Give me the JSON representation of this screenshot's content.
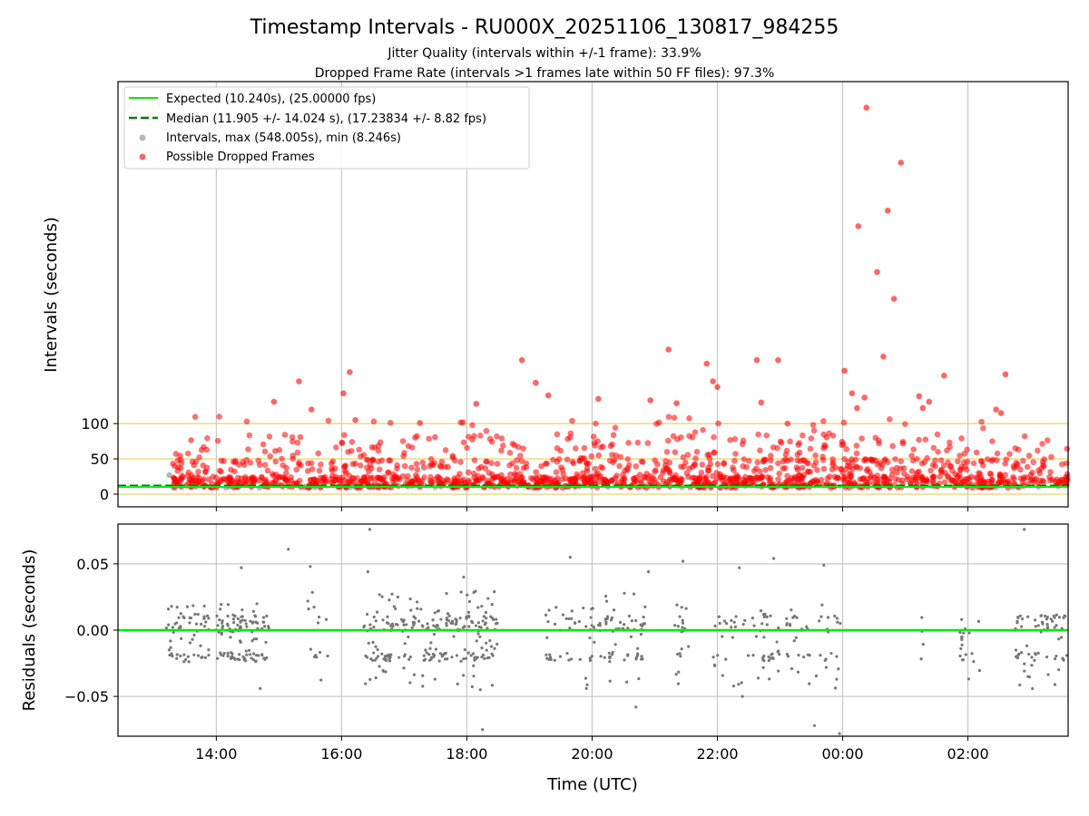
{
  "chart_data": [
    {
      "type": "scatter",
      "panel": "intervals",
      "title": "Timestamp Intervals - RU000X_20251106_130817_984255",
      "subtitle_1": "Jitter Quality (intervals within +/-1 frame): 33.9%",
      "subtitle_2": "Dropped Frame Rate (intervals >1 frames late within 50 FF files): 97.3%",
      "ylabel": "Intervals (seconds)",
      "x_range_hours": [
        12.43,
        27.6
      ],
      "ylim": [
        -18,
        585
      ],
      "y_ticks": [
        "0",
        "50",
        "100"
      ],
      "reference_lines_y": [
        0,
        50,
        100
      ],
      "expected_interval_s": 10.24,
      "median_interval_s": 11.905,
      "legend": {
        "expected": "Expected (10.240s), (25.00000 fps)",
        "median": "Median (11.905 +/- 14.024 s), (17.23834 +/- 8.82 fps)",
        "intervals": "Intervals, max (548.005s), min (8.246s)",
        "dropped": "Possible Dropped Frames"
      },
      "series": [
        {
          "name": "Notable dropped-frame intervals",
          "points": [
            [
              24.38,
              548.0
            ],
            [
              24.93,
              470.0
            ],
            [
              24.72,
              402.0
            ],
            [
              24.25,
              380.0
            ],
            [
              24.55,
              315.0
            ],
            [
              24.82,
              277.0
            ],
            [
              21.22,
              205.0
            ],
            [
              24.65,
              195.0
            ],
            [
              18.88,
              190.0
            ],
            [
              22.63,
              190.0
            ],
            [
              22.97,
              190.0
            ],
            [
              21.83,
              185.0
            ],
            [
              24.03,
              175.0
            ],
            [
              16.13,
              173.0
            ],
            [
              25.62,
              168.0
            ],
            [
              26.6,
              170.0
            ],
            [
              15.32,
              160.0
            ],
            [
              19.1,
              158.0
            ],
            [
              21.93,
              160.0
            ],
            [
              22.0,
              152.0
            ],
            [
              16.03,
              143.0
            ],
            [
              24.15,
              143.0
            ],
            [
              19.3,
              140.0
            ],
            [
              25.22,
              139.0
            ],
            [
              24.35,
              137.0
            ],
            [
              20.1,
              135.0
            ],
            [
              14.92,
              131.0
            ],
            [
              18.15,
              128.0
            ],
            [
              20.93,
              133.0
            ],
            [
              22.7,
              130.0
            ],
            [
              25.38,
              131.0
            ],
            [
              15.52,
              120.0
            ],
            [
              21.35,
              129.0
            ],
            [
              24.23,
              122.0
            ],
            [
              25.28,
              122.0
            ],
            [
              26.45,
              120.0
            ],
            [
              26.53,
              115.0
            ],
            [
              16.22,
              105.0
            ],
            [
              23.12,
              100.0
            ],
            [
              17.25,
              101.0
            ]
          ]
        }
      ],
      "legend_position": "top-left"
    },
    {
      "type": "scatter",
      "panel": "residuals",
      "ylabel": "Residuals (seconds)",
      "xlabel": "Time (UTC)",
      "ylim": [
        -0.08,
        0.08
      ],
      "y_ticks": [
        "−0.05",
        "0.00",
        "0.05"
      ],
      "x_ticks": [
        "14:00",
        "16:00",
        "18:00",
        "20:00",
        "22:00",
        "00:00",
        "02:00"
      ],
      "x_tick_hours": [
        14,
        16,
        18,
        20,
        22,
        24,
        26
      ],
      "zero_line": 0.0
    }
  ]
}
